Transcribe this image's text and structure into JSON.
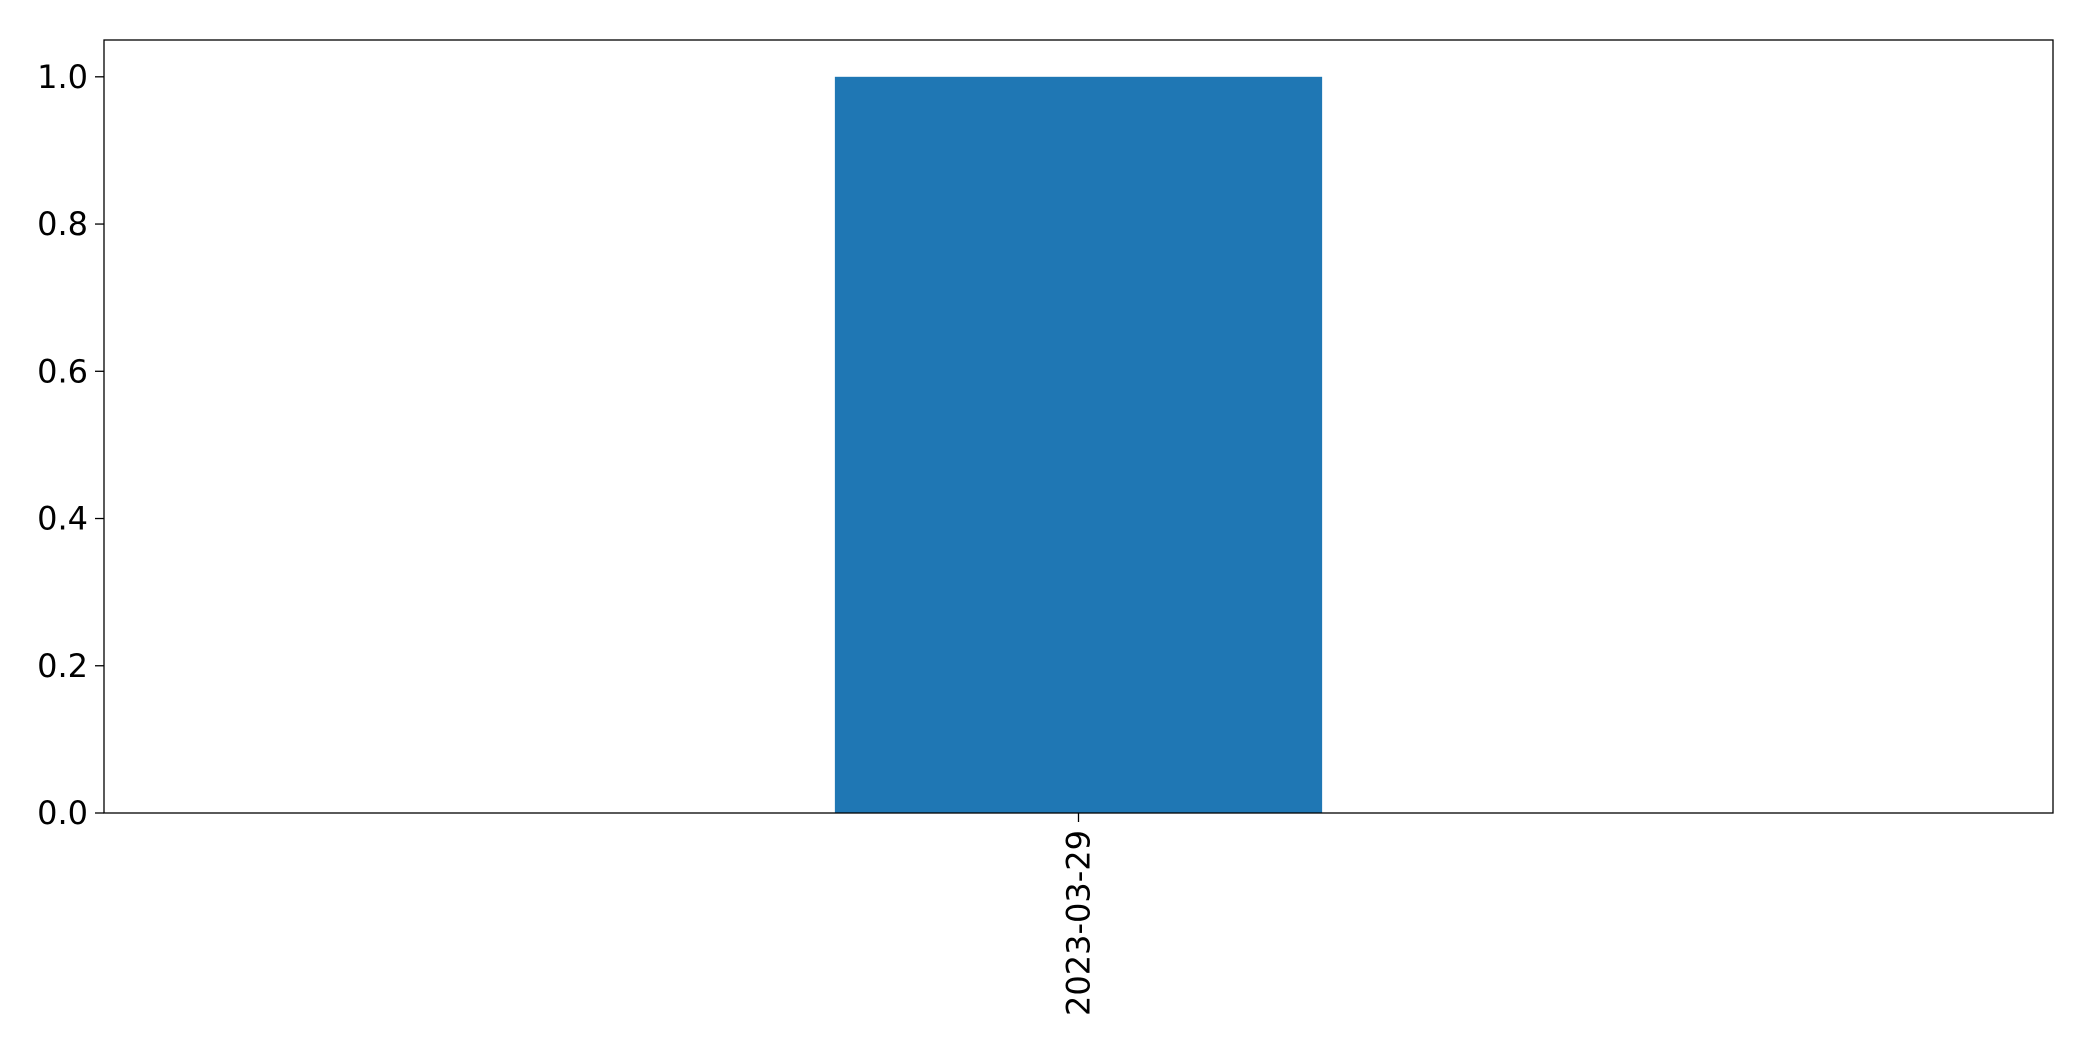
{
  "chart_data": {
    "type": "bar",
    "title": "",
    "xlabel": "",
    "ylabel": "",
    "categories": [
      "2023-03-29"
    ],
    "values": [
      1.0
    ],
    "ylim": [
      0,
      1.05
    ],
    "yticks": [
      "0.0",
      "0.2",
      "0.4",
      "0.6",
      "0.8",
      "1.0"
    ],
    "grid": false,
    "bar_color": "#1f77b4"
  }
}
